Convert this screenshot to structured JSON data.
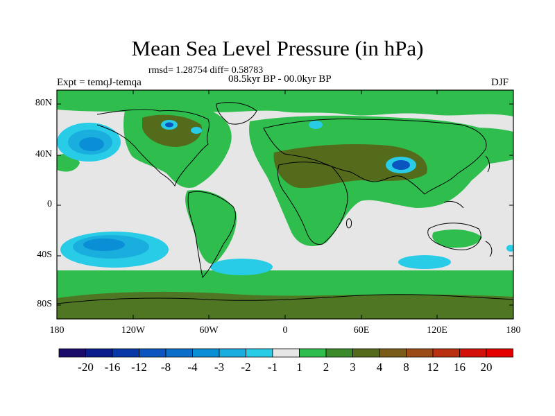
{
  "title": "Mean Sea Level Pressure (in hPa)",
  "stats": "rmsd= 1.28754 diff= 0.58783",
  "experiment": "Expt = temqJ-temqa",
  "period": "08.5kyr BP - 00.0kyr BP",
  "season": "DJF",
  "lat_ticks": [
    "80N",
    "40N",
    "0",
    "40S",
    "80S"
  ],
  "lon_ticks": [
    "180",
    "120W",
    "60W",
    "0",
    "60E",
    "120E",
    "180"
  ],
  "colorbar": {
    "labels": [
      "-20",
      "-16",
      "-12",
      "-8",
      "-4",
      "-3",
      "-2",
      "-1",
      "1",
      "2",
      "3",
      "4",
      "8",
      "12",
      "16",
      "20"
    ],
    "colors": [
      "#1a0b6b",
      "#0a1c8c",
      "#0837a8",
      "#0a55bf",
      "#0b6fc9",
      "#0a8fd6",
      "#1aaede",
      "#28cce6",
      "#e6e6e6",
      "#2fbe4e",
      "#3a8a2a",
      "#556b1c",
      "#7a5c1a",
      "#9b4b16",
      "#b8300f",
      "#d4100a",
      "#e40000"
    ]
  },
  "colors": {
    "background_neutral": "#e6e6e6",
    "green_2": "#2fbe4e",
    "olive_3": "#556b1c",
    "blue_neg": "#0a55bf",
    "cyan_neg": "#28cce6"
  }
}
